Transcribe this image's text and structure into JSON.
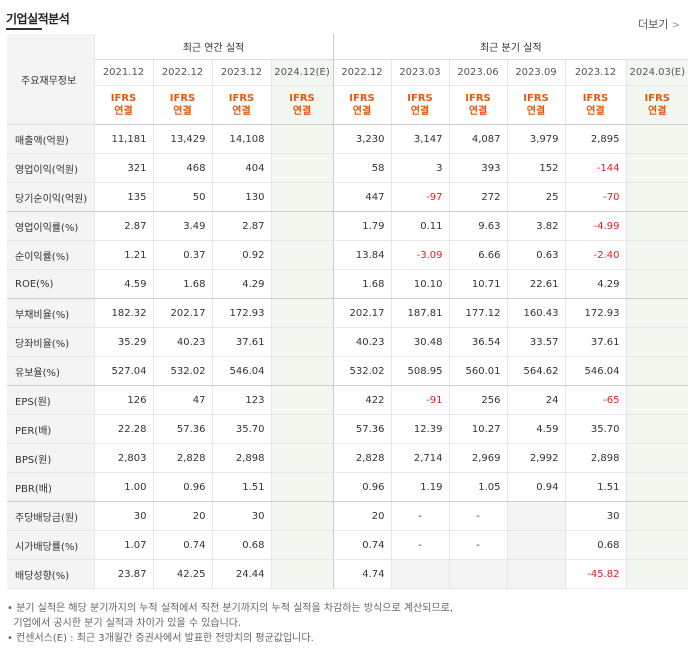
{
  "section_title": "기업실적분석",
  "more_link": "더보기",
  "header": {
    "row_label": "주요재무정보",
    "annual_group": "최근 연간 실적",
    "quarter_group": "최근 분기 실적",
    "annual_periods": [
      "2021.12",
      "2022.12",
      "2023.12",
      "2024.12(E)"
    ],
    "quarter_periods": [
      "2022.12",
      "2023.03",
      "2023.06",
      "2023.09",
      "2023.12",
      "2024.03(E)"
    ],
    "ifrs_top": "IFRS",
    "ifrs_bottom": "연결"
  },
  "rows": [
    {
      "label": "매출액(억원)",
      "annual": [
        "11,181",
        "13,429",
        "14,108",
        ""
      ],
      "quarter": [
        "3,230",
        "3,147",
        "4,087",
        "3,979",
        "2,895",
        ""
      ]
    },
    {
      "label": "영업이익(억원)",
      "annual": [
        "321",
        "468",
        "404",
        ""
      ],
      "quarter": [
        "58",
        "3",
        "393",
        "152",
        "-144",
        ""
      ]
    },
    {
      "label": "당기순이익(억원)",
      "annual": [
        "135",
        "50",
        "130",
        ""
      ],
      "quarter": [
        "447",
        "-97",
        "272",
        "25",
        "-70",
        ""
      ]
    },
    {
      "label": "영업이익률(%)",
      "annual": [
        "2.87",
        "3.49",
        "2.87",
        ""
      ],
      "quarter": [
        "1.79",
        "0.11",
        "9.63",
        "3.82",
        "-4.99",
        ""
      ]
    },
    {
      "label": "순이익률(%)",
      "annual": [
        "1.21",
        "0.37",
        "0.92",
        ""
      ],
      "quarter": [
        "13.84",
        "-3.09",
        "6.66",
        "0.63",
        "-2.40",
        ""
      ]
    },
    {
      "label": "ROE(%)",
      "annual": [
        "4.59",
        "1.68",
        "4.29",
        ""
      ],
      "quarter": [
        "1.68",
        "10.10",
        "10.71",
        "22.61",
        "4.29",
        ""
      ]
    },
    {
      "label": "부채비율(%)",
      "annual": [
        "182.32",
        "202.17",
        "172.93",
        ""
      ],
      "quarter": [
        "202.17",
        "187.81",
        "177.12",
        "160.43",
        "172.93",
        ""
      ]
    },
    {
      "label": "당좌비율(%)",
      "annual": [
        "35.29",
        "40.23",
        "37.61",
        ""
      ],
      "quarter": [
        "40.23",
        "30.48",
        "36.54",
        "33.57",
        "37.61",
        ""
      ]
    },
    {
      "label": "유보율(%)",
      "annual": [
        "527.04",
        "532.02",
        "546.04",
        ""
      ],
      "quarter": [
        "532.02",
        "508.95",
        "560.01",
        "564.62",
        "546.04",
        ""
      ]
    },
    {
      "label": "EPS(원)",
      "annual": [
        "126",
        "47",
        "123",
        ""
      ],
      "quarter": [
        "422",
        "-91",
        "256",
        "24",
        "-65",
        ""
      ]
    },
    {
      "label": "PER(배)",
      "annual": [
        "22.28",
        "57.36",
        "35.70",
        ""
      ],
      "quarter": [
        "57.36",
        "12.39",
        "10.27",
        "4.59",
        "35.70",
        ""
      ]
    },
    {
      "label": "BPS(원)",
      "annual": [
        "2,803",
        "2,828",
        "2,898",
        ""
      ],
      "quarter": [
        "2,828",
        "2,714",
        "2,969",
        "2,992",
        "2,898",
        ""
      ]
    },
    {
      "label": "PBR(배)",
      "annual": [
        "1.00",
        "0.96",
        "1.51",
        ""
      ],
      "quarter": [
        "0.96",
        "1.19",
        "1.05",
        "0.94",
        "1.51",
        ""
      ]
    },
    {
      "label": "주당배당금(원)",
      "annual": [
        "30",
        "20",
        "30",
        ""
      ],
      "quarter": [
        "20",
        "-",
        "-",
        "",
        "30",
        ""
      ]
    },
    {
      "label": "시가배당률(%)",
      "annual": [
        "1.07",
        "0.74",
        "0.68",
        ""
      ],
      "quarter": [
        "0.74",
        "-",
        "-",
        "",
        "0.68",
        ""
      ]
    },
    {
      "label": "배당성향(%)",
      "annual": [
        "23.87",
        "42.25",
        "24.44",
        ""
      ],
      "quarter": [
        "4.74",
        "",
        "",
        "",
        "-45.82",
        ""
      ]
    }
  ],
  "notes": [
    "• 분기 실적은 해당 분기까지의 누적 실적에서 직전 분기까지의 누적 실적을 차감하는 방식으로 계산되므로,",
    "  기업에서 공시한 분기 실적과 차이가 있을 수 있습니다.",
    "• 컨센서스(E) : 최근 3개월간 증권사에서 발표한 전망치의 평균값입니다."
  ]
}
